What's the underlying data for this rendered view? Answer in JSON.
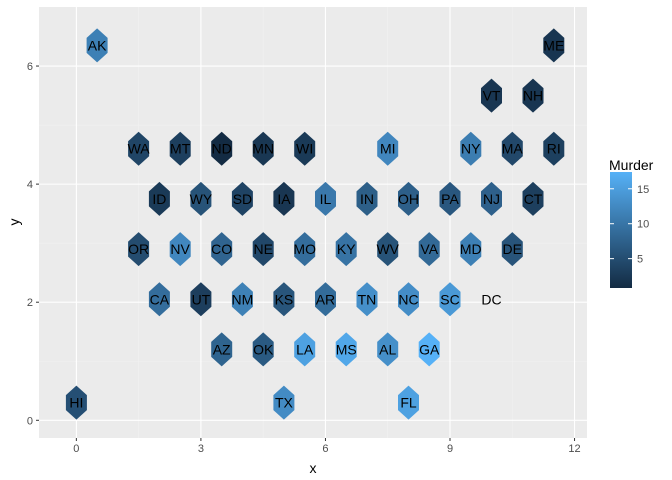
{
  "chart_data": {
    "type": "hexbin-map",
    "xlabel": "x",
    "ylabel": "y",
    "xlim": [
      -0.9,
      12.3
    ],
    "ylim": [
      -0.3,
      7.0
    ],
    "xticks": [
      0,
      3,
      6,
      9,
      12
    ],
    "yticks": [
      0,
      2,
      4,
      6
    ],
    "legend": {
      "title": "Murder",
      "range": [
        0.8,
        17.4
      ],
      "ticks": [
        5,
        10,
        15
      ],
      "position": "right"
    },
    "colors": {
      "low": "#132B43",
      "high": "#56B1F7",
      "panel": "#EBEBEB",
      "grid_major": "#FFFFFF",
      "grid_minor": "#F2F2F2"
    },
    "grid": true,
    "states": [
      {
        "abbr": "AK",
        "x": 0.5,
        "y": 6.35,
        "value": 11.3
      },
      {
        "abbr": "ME",
        "x": 11.5,
        "y": 6.35,
        "value": 2.1
      },
      {
        "abbr": "VT",
        "x": 10.0,
        "y": 5.5,
        "value": 2.2
      },
      {
        "abbr": "NH",
        "x": 11.0,
        "y": 5.5,
        "value": 2.1
      },
      {
        "abbr": "WA",
        "x": 1.5,
        "y": 4.6,
        "value": 4.0
      },
      {
        "abbr": "MT",
        "x": 2.5,
        "y": 4.6,
        "value": 3.3
      },
      {
        "abbr": "ND",
        "x": 3.5,
        "y": 4.6,
        "value": 0.8
      },
      {
        "abbr": "MN",
        "x": 4.5,
        "y": 4.6,
        "value": 2.3
      },
      {
        "abbr": "WI",
        "x": 5.5,
        "y": 4.6,
        "value": 2.6
      },
      {
        "abbr": "MI",
        "x": 7.5,
        "y": 4.6,
        "value": 12.1
      },
      {
        "abbr": "NY",
        "x": 9.5,
        "y": 4.6,
        "value": 10.9
      },
      {
        "abbr": "MA",
        "x": 10.5,
        "y": 4.6,
        "value": 4.4
      },
      {
        "abbr": "RI",
        "x": 11.5,
        "y": 4.6,
        "value": 3.4
      },
      {
        "abbr": "ID",
        "x": 2.0,
        "y": 3.75,
        "value": 2.6
      },
      {
        "abbr": "WY",
        "x": 3.0,
        "y": 3.75,
        "value": 5.7
      },
      {
        "abbr": "SD",
        "x": 4.0,
        "y": 3.75,
        "value": 3.8
      },
      {
        "abbr": "IA",
        "x": 5.0,
        "y": 3.75,
        "value": 2.2
      },
      {
        "abbr": "IL",
        "x": 6.0,
        "y": 3.75,
        "value": 10.4
      },
      {
        "abbr": "IN",
        "x": 7.0,
        "y": 3.75,
        "value": 7.2
      },
      {
        "abbr": "OH",
        "x": 8.0,
        "y": 3.75,
        "value": 7.3
      },
      {
        "abbr": "PA",
        "x": 9.0,
        "y": 3.75,
        "value": 6.3
      },
      {
        "abbr": "NJ",
        "x": 10.0,
        "y": 3.75,
        "value": 7.4
      },
      {
        "abbr": "CT",
        "x": 11.0,
        "y": 3.75,
        "value": 3.3
      },
      {
        "abbr": "OR",
        "x": 1.5,
        "y": 2.9,
        "value": 4.9
      },
      {
        "abbr": "NV",
        "x": 2.5,
        "y": 2.9,
        "value": 12.2
      },
      {
        "abbr": "CO",
        "x": 3.5,
        "y": 2.9,
        "value": 7.9
      },
      {
        "abbr": "NE",
        "x": 4.5,
        "y": 2.9,
        "value": 4.3
      },
      {
        "abbr": "MO",
        "x": 5.5,
        "y": 2.9,
        "value": 9.0
      },
      {
        "abbr": "KY",
        "x": 6.5,
        "y": 2.9,
        "value": 9.7
      },
      {
        "abbr": "WV",
        "x": 7.5,
        "y": 2.9,
        "value": 5.7
      },
      {
        "abbr": "VA",
        "x": 8.5,
        "y": 2.9,
        "value": 8.5
      },
      {
        "abbr": "MD",
        "x": 9.5,
        "y": 2.9,
        "value": 11.3
      },
      {
        "abbr": "DE",
        "x": 10.5,
        "y": 2.9,
        "value": 5.9
      },
      {
        "abbr": "CA",
        "x": 2.0,
        "y": 2.05,
        "value": 9.0
      },
      {
        "abbr": "UT",
        "x": 3.0,
        "y": 2.05,
        "value": 3.2
      },
      {
        "abbr": "NM",
        "x": 4.0,
        "y": 2.05,
        "value": 11.4
      },
      {
        "abbr": "KS",
        "x": 5.0,
        "y": 2.05,
        "value": 6.0
      },
      {
        "abbr": "AR",
        "x": 6.0,
        "y": 2.05,
        "value": 8.8
      },
      {
        "abbr": "TN",
        "x": 7.0,
        "y": 2.05,
        "value": 13.2
      },
      {
        "abbr": "NC",
        "x": 8.0,
        "y": 2.05,
        "value": 13.0
      },
      {
        "abbr": "SC",
        "x": 9.0,
        "y": 2.05,
        "value": 14.4
      },
      {
        "abbr": "DC",
        "x": 10.0,
        "y": 2.05,
        "value": null
      },
      {
        "abbr": "AZ",
        "x": 3.5,
        "y": 1.2,
        "value": 7.8
      },
      {
        "abbr": "OK",
        "x": 4.5,
        "y": 1.2,
        "value": 6.6
      },
      {
        "abbr": "LA",
        "x": 5.5,
        "y": 1.2,
        "value": 15.4
      },
      {
        "abbr": "MS",
        "x": 6.5,
        "y": 1.2,
        "value": 16.1
      },
      {
        "abbr": "AL",
        "x": 7.5,
        "y": 1.2,
        "value": 13.2
      },
      {
        "abbr": "GA",
        "x": 8.5,
        "y": 1.2,
        "value": 17.4
      },
      {
        "abbr": "HI",
        "x": 0.0,
        "y": 0.3,
        "value": 5.3
      },
      {
        "abbr": "TX",
        "x": 5.0,
        "y": 0.3,
        "value": 12.7
      },
      {
        "abbr": "FL",
        "x": 8.0,
        "y": 0.3,
        "value": 15.4
      }
    ]
  }
}
